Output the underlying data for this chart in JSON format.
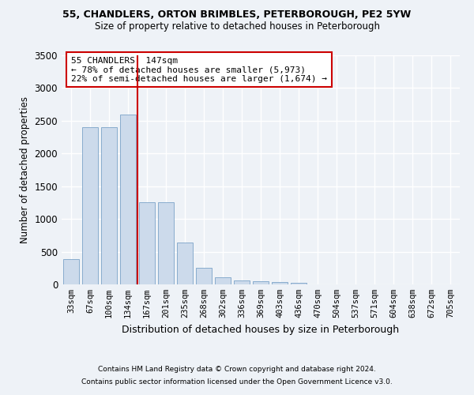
{
  "title1": "55, CHANDLERS, ORTON BRIMBLES, PETERBOROUGH, PE2 5YW",
  "title2": "Size of property relative to detached houses in Peterborough",
  "xlabel": "Distribution of detached houses by size in Peterborough",
  "ylabel": "Number of detached properties",
  "categories": [
    "33sqm",
    "67sqm",
    "100sqm",
    "134sqm",
    "167sqm",
    "201sqm",
    "235sqm",
    "268sqm",
    "302sqm",
    "336sqm",
    "369sqm",
    "403sqm",
    "436sqm",
    "470sqm",
    "504sqm",
    "537sqm",
    "571sqm",
    "604sqm",
    "638sqm",
    "672sqm",
    "705sqm"
  ],
  "values": [
    390,
    2400,
    2400,
    2600,
    1250,
    1250,
    640,
    250,
    105,
    60,
    50,
    40,
    30,
    0,
    0,
    0,
    0,
    0,
    0,
    0,
    0
  ],
  "bar_color": "#ccdaeb",
  "bar_edge_color": "#7ba3c8",
  "vline_color": "#cc0000",
  "annotation_text": "55 CHANDLERS: 147sqm\n← 78% of detached houses are smaller (5,973)\n22% of semi-detached houses are larger (1,674) →",
  "annotation_box_color": "#ffffff",
  "annotation_box_edge": "#cc0000",
  "footnote1": "Contains HM Land Registry data © Crown copyright and database right 2024.",
  "footnote2": "Contains public sector information licensed under the Open Government Licence v3.0.",
  "bg_color": "#eef2f7",
  "plot_bg_color": "#eef2f7",
  "grid_color": "#ffffff",
  "ylim": [
    0,
    3500
  ],
  "yticks": [
    0,
    500,
    1000,
    1500,
    2000,
    2500,
    3000,
    3500
  ]
}
